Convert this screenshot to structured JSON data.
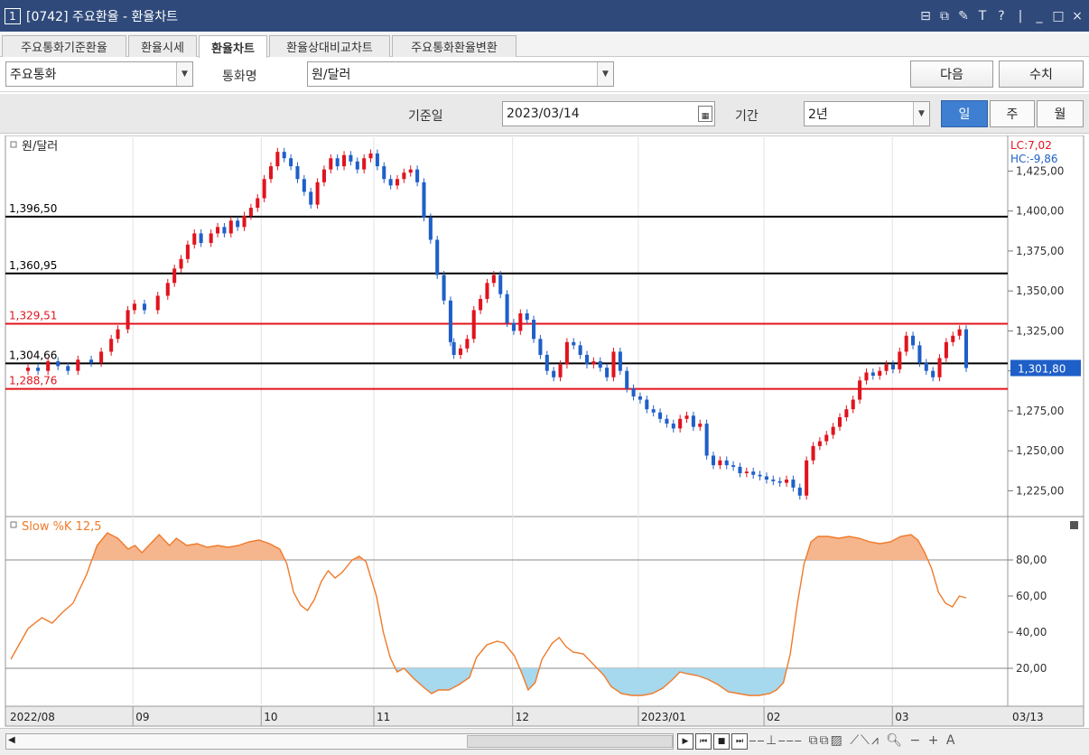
{
  "window": {
    "number": "1",
    "title": "[0742] 주요환율 - 환율차트",
    "controls": [
      "⊟",
      "⧉",
      "✎",
      "T",
      "?",
      "|",
      "_",
      "□",
      "×"
    ]
  },
  "tabs": [
    {
      "label": "주요통화기준환율",
      "active": false
    },
    {
      "label": "환율시세",
      "active": false
    },
    {
      "label": "환율차트",
      "active": true
    },
    {
      "label": "환율상대비교차트",
      "active": false
    },
    {
      "label": "주요통화환율변환",
      "active": false
    }
  ],
  "toolbar": {
    "category_select": "주요통화",
    "currency_label": "통화명",
    "currency_select": "원/달러",
    "next_button": "다음",
    "values_button": "수치",
    "date_label": "기준일",
    "date_value": "2023/03/14",
    "period_label": "기간",
    "period_select": "2년",
    "period_buttons": [
      {
        "label": "일",
        "active": true
      },
      {
        "label": "주",
        "active": false
      },
      {
        "label": "월",
        "active": false
      }
    ]
  },
  "bottom_toolbar": {
    "nav_buttons": [
      "▶",
      "⏮",
      "■",
      "⏭"
    ]
  },
  "chart_data": [
    {
      "type": "candlestick",
      "title": "원/달러",
      "ylim": [
        1210,
        1445
      ],
      "y_ticks": [
        1225,
        1250,
        1275,
        1300,
        1325,
        1350,
        1375,
        1400,
        1425
      ],
      "y_tick_labels": [
        "1,225,00",
        "1,250,00",
        "1,275,00",
        "1,300,00",
        "1,325,00",
        "1,350,00",
        "1,375,00",
        "1,400,00",
        "1,425,00"
      ],
      "x_labels": [
        "2022/08",
        "09",
        "10",
        "11",
        "12",
        "2023/01",
        "02",
        "03",
        "03/13"
      ],
      "lc_label": "LC:7,02",
      "hc_label": "HC:-9,86",
      "current_value": 1301.8,
      "current_label": "1,301,80",
      "reference_lines": [
        {
          "value": 1396.5,
          "label": "1,396,50",
          "color": "#000000"
        },
        {
          "value": 1360.95,
          "label": "1,360,95",
          "color": "#000000"
        },
        {
          "value": 1329.51,
          "label": "1,329,51",
          "color": "#e0141e"
        },
        {
          "value": 1304.66,
          "label": "1,304,66",
          "color": "#000000"
        },
        {
          "value": 1288.76,
          "label": "1,288,76",
          "color": "#e0141e"
        }
      ],
      "up_color": "#e0141e",
      "down_color": "#1f5fc8",
      "close_points": [
        [
          0,
          1300
        ],
        [
          3,
          1302
        ],
        [
          6,
          1300
        ],
        [
          9,
          1306
        ],
        [
          12,
          1303
        ],
        [
          15,
          1300
        ],
        [
          18,
          1307
        ],
        [
          22,
          1305
        ],
        [
          25,
          1312
        ],
        [
          28,
          1320
        ],
        [
          30,
          1326
        ],
        [
          33,
          1338
        ],
        [
          35,
          1342
        ],
        [
          38,
          1338
        ],
        [
          42,
          1347
        ],
        [
          45,
          1355
        ],
        [
          47,
          1364
        ],
        [
          49,
          1370
        ],
        [
          51,
          1379
        ],
        [
          53,
          1386
        ],
        [
          55,
          1380
        ],
        [
          58,
          1386
        ],
        [
          60,
          1390
        ],
        [
          62,
          1386
        ],
        [
          64,
          1394
        ],
        [
          66,
          1390
        ],
        [
          68,
          1397
        ],
        [
          70,
          1402
        ],
        [
          72,
          1408
        ],
        [
          74,
          1420
        ],
        [
          76,
          1428
        ],
        [
          78,
          1437
        ],
        [
          80,
          1433
        ],
        [
          82,
          1428
        ],
        [
          84,
          1420
        ],
        [
          86,
          1412
        ],
        [
          88,
          1404
        ],
        [
          90,
          1418
        ],
        [
          92,
          1426
        ],
        [
          94,
          1433
        ],
        [
          96,
          1428
        ],
        [
          98,
          1435
        ],
        [
          100,
          1431
        ],
        [
          102,
          1426
        ],
        [
          104,
          1433
        ],
        [
          106,
          1436
        ],
        [
          108,
          1428
        ],
        [
          110,
          1420
        ],
        [
          112,
          1416
        ],
        [
          114,
          1420
        ],
        [
          116,
          1424
        ],
        [
          118,
          1426
        ],
        [
          120,
          1418
        ],
        [
          122,
          1396
        ],
        [
          124,
          1382
        ],
        [
          126,
          1360
        ],
        [
          128,
          1344
        ],
        [
          130,
          1318
        ],
        [
          131,
          1310
        ],
        [
          133,
          1314
        ],
        [
          135,
          1320
        ],
        [
          137,
          1338
        ],
        [
          139,
          1345
        ],
        [
          141,
          1355
        ],
        [
          143,
          1360
        ],
        [
          145,
          1348
        ],
        [
          147,
          1330
        ],
        [
          149,
          1325
        ],
        [
          151,
          1336
        ],
        [
          153,
          1332
        ],
        [
          155,
          1320
        ],
        [
          157,
          1310
        ],
        [
          159,
          1300
        ],
        [
          161,
          1296
        ],
        [
          163,
          1304
        ],
        [
          165,
          1318
        ],
        [
          167,
          1316
        ],
        [
          169,
          1310
        ],
        [
          171,
          1304
        ],
        [
          173,
          1306
        ],
        [
          175,
          1302
        ],
        [
          177,
          1296
        ],
        [
          179,
          1312
        ],
        [
          181,
          1300
        ],
        [
          183,
          1289
        ],
        [
          185,
          1284
        ],
        [
          187,
          1282
        ],
        [
          189,
          1276
        ],
        [
          191,
          1274
        ],
        [
          193,
          1270
        ],
        [
          195,
          1267
        ],
        [
          197,
          1264
        ],
        [
          199,
          1270
        ],
        [
          201,
          1272
        ],
        [
          203,
          1265
        ],
        [
          205,
          1267
        ],
        [
          207,
          1247
        ],
        [
          209,
          1241
        ],
        [
          211,
          1244
        ],
        [
          213,
          1241
        ],
        [
          215,
          1240
        ],
        [
          217,
          1236
        ],
        [
          219,
          1237
        ],
        [
          221,
          1235
        ],
        [
          223,
          1234
        ],
        [
          225,
          1232
        ],
        [
          227,
          1231
        ],
        [
          229,
          1230
        ],
        [
          231,
          1232
        ],
        [
          233,
          1227
        ],
        [
          235,
          1222
        ],
        [
          237,
          1244
        ],
        [
          239,
          1253
        ],
        [
          241,
          1256
        ],
        [
          243,
          1260
        ],
        [
          245,
          1265
        ],
        [
          247,
          1271
        ],
        [
          249,
          1276
        ],
        [
          251,
          1282
        ],
        [
          253,
          1294
        ],
        [
          255,
          1299
        ],
        [
          257,
          1297
        ],
        [
          259,
          1300
        ],
        [
          261,
          1304
        ],
        [
          263,
          1301
        ],
        [
          265,
          1312
        ],
        [
          267,
          1322
        ],
        [
          269,
          1316
        ],
        [
          271,
          1305
        ],
        [
          273,
          1300
        ],
        [
          275,
          1296
        ],
        [
          277,
          1308
        ],
        [
          279,
          1318
        ],
        [
          281,
          1322
        ],
        [
          283,
          1326
        ],
        [
          285,
          1301.8
        ]
      ]
    },
    {
      "type": "area",
      "title": "Slow %K 12,5",
      "ylim": [
        0,
        100
      ],
      "y_ticks": [
        20,
        40,
        60,
        80
      ],
      "y_tick_labels": [
        "20,00",
        "40,00",
        "60,00",
        "80,00"
      ],
      "thresholds": [
        20,
        80
      ],
      "line_color": "#f07a2a",
      "overbought_fill": "#f5b58d",
      "oversold_fill": "#a6d8ee",
      "points": [
        [
          0,
          25
        ],
        [
          5,
          42
        ],
        [
          9,
          48
        ],
        [
          12,
          45
        ],
        [
          15,
          51
        ],
        [
          18,
          56
        ],
        [
          22,
          72
        ],
        [
          25,
          88
        ],
        [
          28,
          95
        ],
        [
          31,
          92
        ],
        [
          34,
          86
        ],
        [
          36,
          88
        ],
        [
          38,
          84
        ],
        [
          41,
          90
        ],
        [
          43,
          94
        ],
        [
          46,
          88
        ],
        [
          48,
          92
        ],
        [
          51,
          88
        ],
        [
          54,
          89
        ],
        [
          57,
          87
        ],
        [
          60,
          88
        ],
        [
          63,
          87
        ],
        [
          66,
          88
        ],
        [
          69,
          90
        ],
        [
          72,
          91
        ],
        [
          75,
          89
        ],
        [
          78,
          86
        ],
        [
          80,
          78
        ],
        [
          82,
          62
        ],
        [
          84,
          55
        ],
        [
          86,
          52
        ],
        [
          88,
          58
        ],
        [
          90,
          68
        ],
        [
          92,
          74
        ],
        [
          94,
          70
        ],
        [
          96,
          73
        ],
        [
          99,
          80
        ],
        [
          101,
          82
        ],
        [
          103,
          79
        ],
        [
          106,
          60
        ],
        [
          108,
          40
        ],
        [
          110,
          26
        ],
        [
          112,
          18
        ],
        [
          114,
          20
        ],
        [
          117,
          14
        ],
        [
          120,
          9
        ],
        [
          122,
          6
        ],
        [
          124,
          8
        ],
        [
          127,
          8
        ],
        [
          130,
          11
        ],
        [
          133,
          15
        ],
        [
          135,
          26
        ],
        [
          138,
          33
        ],
        [
          141,
          35
        ],
        [
          143,
          34
        ],
        [
          146,
          27
        ],
        [
          148,
          18
        ],
        [
          150,
          8
        ],
        [
          152,
          12
        ],
        [
          154,
          25
        ],
        [
          157,
          34
        ],
        [
          159,
          37
        ],
        [
          161,
          32
        ],
        [
          163,
          29
        ],
        [
          166,
          28
        ],
        [
          169,
          22
        ],
        [
          172,
          16
        ],
        [
          174,
          10
        ],
        [
          177,
          6
        ],
        [
          180,
          5
        ],
        [
          183,
          5
        ],
        [
          186,
          6
        ],
        [
          189,
          9
        ],
        [
          192,
          14
        ],
        [
          194,
          18
        ],
        [
          196,
          17
        ],
        [
          199,
          16
        ],
        [
          202,
          14
        ],
        [
          205,
          11
        ],
        [
          208,
          7
        ],
        [
          211,
          6
        ],
        [
          214,
          5
        ],
        [
          217,
          5
        ],
        [
          220,
          6
        ],
        [
          222,
          8
        ],
        [
          224,
          12
        ],
        [
          226,
          28
        ],
        [
          228,
          55
        ],
        [
          230,
          78
        ],
        [
          232,
          90
        ],
        [
          234,
          93
        ],
        [
          237,
          93
        ],
        [
          240,
          92
        ],
        [
          243,
          93
        ],
        [
          246,
          92
        ],
        [
          249,
          90
        ],
        [
          252,
          89
        ],
        [
          255,
          90
        ],
        [
          258,
          93
        ],
        [
          261,
          94
        ],
        [
          263,
          91
        ],
        [
          265,
          84
        ],
        [
          267,
          75
        ],
        [
          269,
          62
        ],
        [
          271,
          56
        ],
        [
          273,
          54
        ],
        [
          275,
          60
        ],
        [
          277,
          59
        ]
      ]
    }
  ]
}
